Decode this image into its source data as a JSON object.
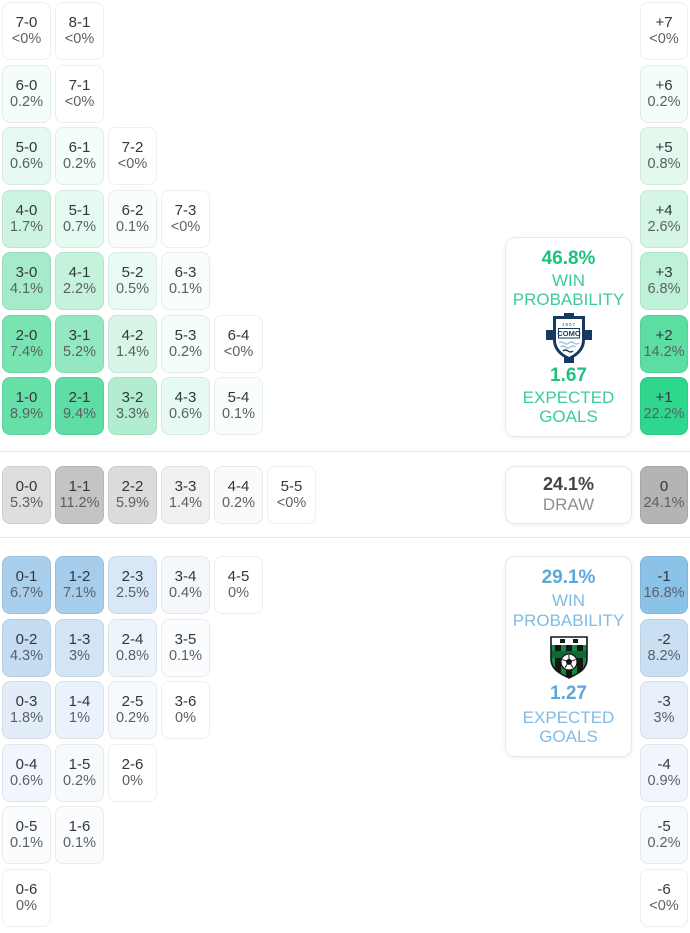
{
  "colors": {
    "home_accent": "#1ec27f",
    "home_label": "#3bcd95",
    "away_accent": "#5ea7da",
    "away_label": "#7fbce3",
    "draw_value": "#434343",
    "draw_label": "#8f8f8f",
    "home_max_cell": "#2fd68d",
    "away_max_cell": "#8ac2e8",
    "draw_max_cell": "#b4b4b4"
  },
  "home": {
    "score_rows": [
      [
        {
          "score": "7-0",
          "pct": "<0%",
          "bg": "#ffffff"
        },
        {
          "score": "8-1",
          "pct": "<0%",
          "bg": "#ffffff"
        }
      ],
      [
        {
          "score": "6-0",
          "pct": "0.2%",
          "bg": "#f4fdf9"
        },
        {
          "score": "7-1",
          "pct": "<0%",
          "bg": "#ffffff"
        }
      ],
      [
        {
          "score": "5-0",
          "pct": "0.6%",
          "bg": "#e7faf1"
        },
        {
          "score": "6-1",
          "pct": "0.2%",
          "bg": "#f4fdf9"
        },
        {
          "score": "7-2",
          "pct": "<0%",
          "bg": "#ffffff"
        }
      ],
      [
        {
          "score": "4-0",
          "pct": "1.7%",
          "bg": "#cdf4e0"
        },
        {
          "score": "5-1",
          "pct": "0.7%",
          "bg": "#e5faf0"
        },
        {
          "score": "6-2",
          "pct": "0.1%",
          "bg": "#f9fefb"
        },
        {
          "score": "7-3",
          "pct": "<0%",
          "bg": "#ffffff"
        }
      ],
      [
        {
          "score": "3-0",
          "pct": "4.1%",
          "bg": "#a5ebca"
        },
        {
          "score": "4-1",
          "pct": "2.2%",
          "bg": "#c5f2db"
        },
        {
          "score": "5-2",
          "pct": "0.5%",
          "bg": "#eafbf3"
        },
        {
          "score": "6-3",
          "pct": "0.1%",
          "bg": "#f9fefb"
        }
      ],
      [
        {
          "score": "2-0",
          "pct": "7.4%",
          "bg": "#79e3b2"
        },
        {
          "score": "3-1",
          "pct": "5.2%",
          "bg": "#93e8c1"
        },
        {
          "score": "4-2",
          "pct": "1.4%",
          "bg": "#d7f6e7"
        },
        {
          "score": "5-3",
          "pct": "0.2%",
          "bg": "#f4fdf9"
        },
        {
          "score": "6-4",
          "pct": "<0%",
          "bg": "#ffffff"
        }
      ],
      [
        {
          "score": "1-0",
          "pct": "8.9%",
          "bg": "#67dfa9"
        },
        {
          "score": "2-1",
          "pct": "9.4%",
          "bg": "#5edda4"
        },
        {
          "score": "3-2",
          "pct": "3.3%",
          "bg": "#b2edd0"
        },
        {
          "score": "4-3",
          "pct": "0.6%",
          "bg": "#e7faf1"
        },
        {
          "score": "5-4",
          "pct": "0.1%",
          "bg": "#f9fefb"
        }
      ]
    ],
    "diffs": [
      {
        "score": "+7",
        "pct": "<0%",
        "bg": "#ffffff"
      },
      {
        "score": "+6",
        "pct": "0.2%",
        "bg": "#f4fdf9"
      },
      {
        "score": "+5",
        "pct": "0.8%",
        "bg": "#e3f9ee"
      },
      {
        "score": "+4",
        "pct": "2.6%",
        "bg": "#d5f6e6"
      },
      {
        "score": "+3",
        "pct": "6.8%",
        "bg": "#bff1d8"
      },
      {
        "score": "+2",
        "pct": "14.2%",
        "bg": "#5cdda2"
      },
      {
        "score": "+1",
        "pct": "22.2%",
        "bg": "#2fd68d"
      }
    ],
    "panel": {
      "win_pct": "46.8%",
      "win_label": "WIN PROBABILITY",
      "xg": "1.67",
      "xg_label": "EXPECTED GOALS"
    },
    "badge": {
      "year": "1907",
      "wordmark": "COMO"
    }
  },
  "draw": {
    "score_row": [
      {
        "score": "0-0",
        "pct": "5.3%",
        "bg": "#dedede"
      },
      {
        "score": "1-1",
        "pct": "11.2%",
        "bg": "#c4c4c4"
      },
      {
        "score": "2-2",
        "pct": "5.9%",
        "bg": "#dbdbdb"
      },
      {
        "score": "3-3",
        "pct": "1.4%",
        "bg": "#f1f1f1"
      },
      {
        "score": "4-4",
        "pct": "0.2%",
        "bg": "#fafafa"
      },
      {
        "score": "5-5",
        "pct": "<0%",
        "bg": "#ffffff"
      }
    ],
    "diffs": [
      {
        "score": "0",
        "pct": "24.1%",
        "bg": "#b4b4b4"
      }
    ],
    "panel": {
      "pct": "24.1%",
      "label": "DRAW"
    }
  },
  "away": {
    "score_rows": [
      [
        {
          "score": "0-1",
          "pct": "6.7%",
          "bg": "#aacfed"
        },
        {
          "score": "1-2",
          "pct": "7.1%",
          "bg": "#a6cdec"
        },
        {
          "score": "2-3",
          "pct": "2.5%",
          "bg": "#d8e8f6"
        },
        {
          "score": "3-4",
          "pct": "0.4%",
          "bg": "#f4f8fd"
        },
        {
          "score": "4-5",
          "pct": "0%",
          "bg": "#ffffff"
        }
      ],
      [
        {
          "score": "0-2",
          "pct": "4.3%",
          "bg": "#c4ddf2"
        },
        {
          "score": "1-3",
          "pct": "3%",
          "bg": "#d2e4f5"
        },
        {
          "score": "2-4",
          "pct": "0.8%",
          "bg": "#edf4fb"
        },
        {
          "score": "3-5",
          "pct": "0.1%",
          "bg": "#fafcfe"
        }
      ],
      [
        {
          "score": "0-3",
          "pct": "1.8%",
          "bg": "#e2edf8"
        },
        {
          "score": "1-4",
          "pct": "1%",
          "bg": "#eaf2fb"
        },
        {
          "score": "2-5",
          "pct": "0.2%",
          "bg": "#f7fafd"
        },
        {
          "score": "3-6",
          "pct": "0%",
          "bg": "#ffffff"
        }
      ],
      [
        {
          "score": "0-4",
          "pct": "0.6%",
          "bg": "#f0f6fc"
        },
        {
          "score": "1-5",
          "pct": "0.2%",
          "bg": "#f7fafd"
        },
        {
          "score": "2-6",
          "pct": "0%",
          "bg": "#ffffff"
        }
      ],
      [
        {
          "score": "0-5",
          "pct": "0.1%",
          "bg": "#fafcfe"
        },
        {
          "score": "1-6",
          "pct": "0.1%",
          "bg": "#fafcfe"
        }
      ],
      [
        {
          "score": "0-6",
          "pct": "0%",
          "bg": "#ffffff"
        }
      ]
    ],
    "diffs": [
      {
        "score": "-1",
        "pct": "16.8%",
        "bg": "#8ac2e8"
      },
      {
        "score": "-2",
        "pct": "8.2%",
        "bg": "#c9e0f3"
      },
      {
        "score": "-3",
        "pct": "3%",
        "bg": "#e6effa"
      },
      {
        "score": "-4",
        "pct": "0.9%",
        "bg": "#f0f6fc"
      },
      {
        "score": "-5",
        "pct": "0.2%",
        "bg": "#f7fafd"
      },
      {
        "score": "-6",
        "pct": "<0%",
        "bg": "#ffffff"
      }
    ],
    "panel": {
      "win_pct": "29.1%",
      "win_label": "WIN PROBABILITY",
      "xg": "1.27",
      "xg_label": "EXPECTED GOALS"
    }
  }
}
